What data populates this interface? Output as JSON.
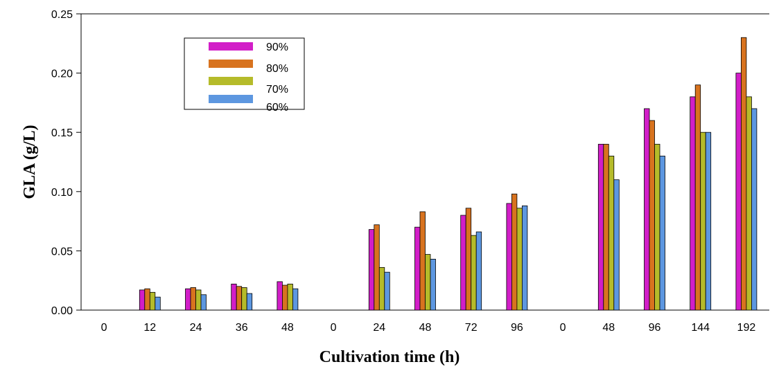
{
  "chart_data": {
    "type": "bar",
    "title": "",
    "xlabel": "Cultivation time (h)",
    "ylabel": "GLA (g/L)",
    "ylim": [
      0,
      0.25
    ],
    "yticks": [
      "0.00",
      "0.05",
      "0.10",
      "0.15",
      "0.20",
      "0.25"
    ],
    "legend_position": "top-left",
    "series": [
      {
        "name": "90%",
        "color": "#d21ec8"
      },
      {
        "name": "80%",
        "color": "#d8731f"
      },
      {
        "name": "70%",
        "color": "#b5bb2a"
      },
      {
        "name": "60%",
        "color": "#5d97e0"
      }
    ],
    "groups": [
      {
        "label": "0",
        "values": [
          null,
          null,
          null,
          null
        ]
      },
      {
        "label": "12",
        "values": [
          0.017,
          0.018,
          0.015,
          0.011
        ]
      },
      {
        "label": "24",
        "values": [
          0.018,
          0.019,
          0.017,
          0.013
        ]
      },
      {
        "label": "36",
        "values": [
          0.022,
          0.02,
          0.019,
          0.014
        ]
      },
      {
        "label": "48",
        "values": [
          0.024,
          0.021,
          0.022,
          0.018
        ]
      },
      {
        "label": "0",
        "values": [
          null,
          null,
          null,
          null
        ]
      },
      {
        "label": "24",
        "values": [
          0.068,
          0.072,
          0.036,
          0.032
        ]
      },
      {
        "label": "48",
        "values": [
          0.07,
          0.083,
          0.047,
          0.043
        ]
      },
      {
        "label": "72",
        "values": [
          0.08,
          0.086,
          0.063,
          0.066
        ]
      },
      {
        "label": "96",
        "values": [
          0.09,
          0.098,
          0.086,
          0.088
        ]
      },
      {
        "label": "0",
        "values": [
          null,
          null,
          null,
          null
        ]
      },
      {
        "label": "48",
        "values": [
          0.14,
          0.14,
          0.13,
          0.11
        ]
      },
      {
        "label": "96",
        "values": [
          0.17,
          0.16,
          0.14,
          0.13
        ]
      },
      {
        "label": "144",
        "values": [
          0.18,
          0.19,
          0.15,
          0.15
        ]
      },
      {
        "label": "192",
        "values": [
          0.2,
          0.23,
          0.18,
          0.17
        ]
      }
    ]
  }
}
